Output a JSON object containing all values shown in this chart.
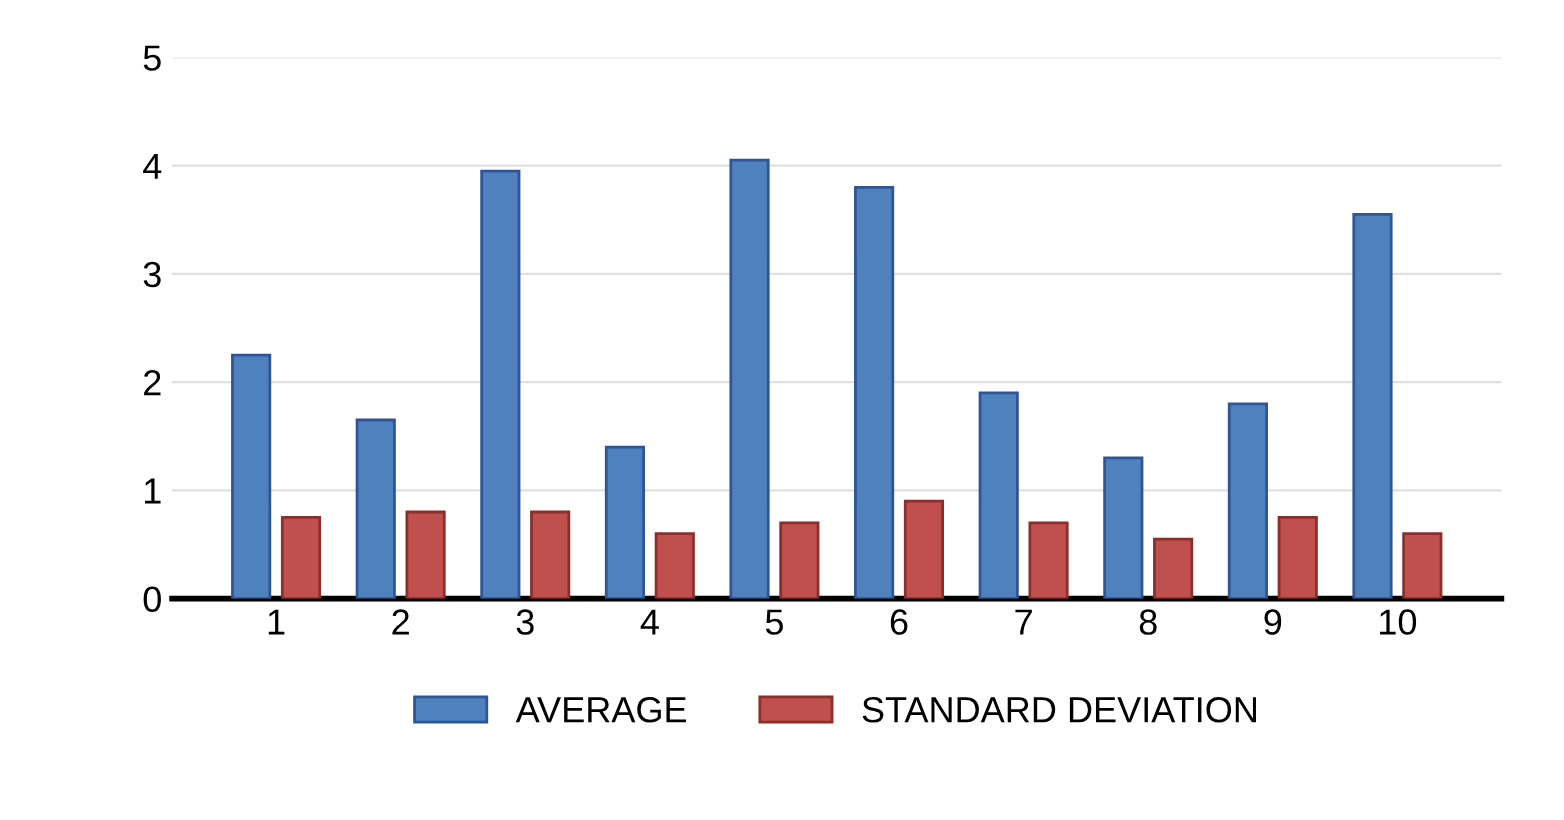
{
  "chart_data": {
    "type": "bar",
    "categories": [
      "1",
      "2",
      "3",
      "4",
      "5",
      "6",
      "7",
      "8",
      "9",
      "10"
    ],
    "series": [
      {
        "name": "AVERAGE",
        "color": "#4f81bd",
        "values": [
          2.25,
          1.65,
          3.95,
          1.4,
          4.05,
          3.8,
          1.9,
          1.3,
          1.8,
          3.55
        ]
      },
      {
        "name": "STANDARD DEVIATION",
        "color": "#c0504d",
        "values": [
          0.75,
          0.8,
          0.8,
          0.6,
          0.7,
          0.9,
          0.7,
          0.55,
          0.75,
          0.6
        ]
      }
    ],
    "ylim": [
      0,
      5
    ],
    "yticks": [
      0,
      1,
      2,
      3,
      4,
      5
    ],
    "grid": "y",
    "legend": "bottom"
  }
}
